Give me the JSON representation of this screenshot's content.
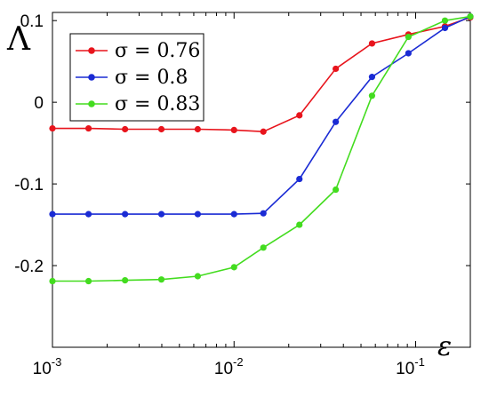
{
  "chart_data": {
    "type": "line",
    "title": "",
    "xlabel": "ε",
    "ylabel": "Λ",
    "x_scale": "log",
    "xlim": [
      0.001,
      0.2
    ],
    "ylim": [
      -0.3,
      0.11
    ],
    "x_ticks": [
      {
        "value": 0.001,
        "base": "10",
        "exp": "-3"
      },
      {
        "value": 0.01,
        "base": "10",
        "exp": "-2"
      },
      {
        "value": 0.1,
        "base": "10",
        "exp": "-1"
      }
    ],
    "y_ticks": [
      {
        "value": 0.1,
        "label": "0.1"
      },
      {
        "value": 0,
        "label": "0"
      },
      {
        "value": -0.1,
        "label": "-0.1"
      },
      {
        "value": -0.2,
        "label": "-0.2"
      }
    ],
    "grid": false,
    "legend_position": "top-left",
    "x": [
      0.001,
      0.00158,
      0.00251,
      0.00398,
      0.00631,
      0.01,
      0.0145,
      0.0229,
      0.0363,
      0.0575,
      0.0912,
      0.145,
      0.2
    ],
    "series": [
      {
        "name": "σ = 0.76",
        "color": "#e8141c",
        "values": [
          -0.032,
          -0.032,
          -0.033,
          -0.033,
          -0.033,
          -0.034,
          -0.036,
          -0.016,
          0.041,
          0.072,
          0.083,
          0.093,
          0.104
        ]
      },
      {
        "name": "σ = 0.8",
        "color": "#1a2bd4",
        "values": [
          -0.137,
          -0.137,
          -0.137,
          -0.137,
          -0.137,
          -0.137,
          -0.136,
          -0.094,
          -0.024,
          0.031,
          0.06,
          0.091,
          0.105
        ]
      },
      {
        "name": "σ = 0.83",
        "color": "#43dc1f",
        "values": [
          -0.219,
          -0.219,
          -0.218,
          -0.217,
          -0.213,
          -0.202,
          -0.178,
          -0.15,
          -0.107,
          0.008,
          0.08,
          0.1,
          0.105
        ]
      }
    ]
  }
}
